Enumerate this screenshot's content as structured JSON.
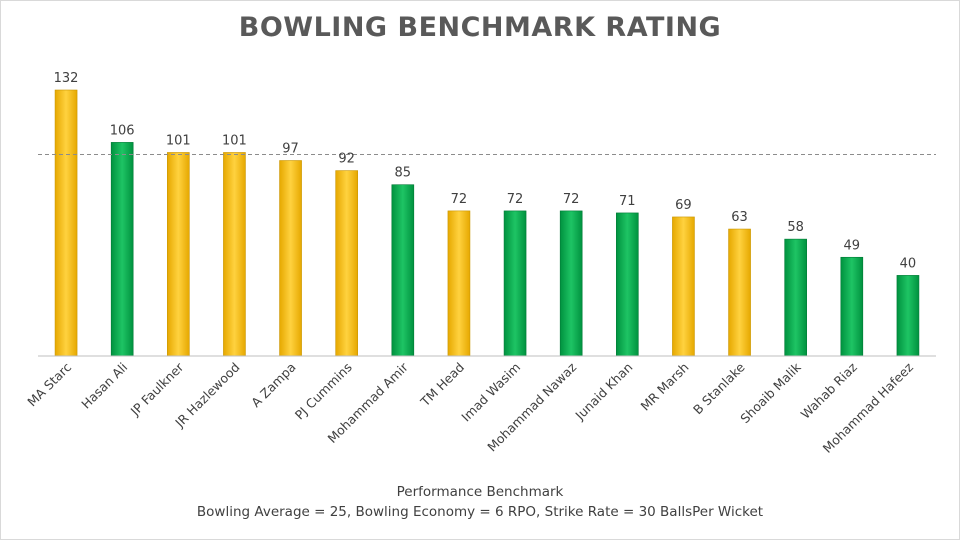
{
  "chart_data": {
    "type": "bar",
    "title": "BOWLING BENCHMARK RATING",
    "categories": [
      "MA Starc",
      "Hasan Ali",
      "JP Faulkner",
      "JR Hazlewood",
      "A Zampa",
      "PJ Cummins",
      "Mohammad Amir",
      "TM Head",
      "Imad Wasim",
      "Mohammad Nawaz",
      "Junaid Khan",
      "MR Marsh",
      "B Stanlake",
      "Shoaib Malik",
      "Wahab Riaz",
      "Mohammad Hafeez"
    ],
    "values": [
      132,
      106,
      101,
      101,
      97,
      92,
      85,
      72,
      72,
      72,
      71,
      69,
      63,
      58,
      49,
      40
    ],
    "bar_colors": [
      "#ffc000",
      "#00b050",
      "#ffc000",
      "#ffc000",
      "#ffc000",
      "#ffc000",
      "#00b050",
      "#ffc000",
      "#00b050",
      "#00b050",
      "#00b050",
      "#ffc000",
      "#ffc000",
      "#00b050",
      "#00b050",
      "#00b050"
    ],
    "ylim": [
      0,
      132
    ],
    "benchmark_value": 100,
    "benchmark_line": "dashed",
    "grid": false,
    "xlabel": "Performance Benchmark",
    "subtitle": "Bowling Average = 25, Bowling Economy = 6 RPO, Strike Rate = 30 BallsPer Wicket"
  }
}
